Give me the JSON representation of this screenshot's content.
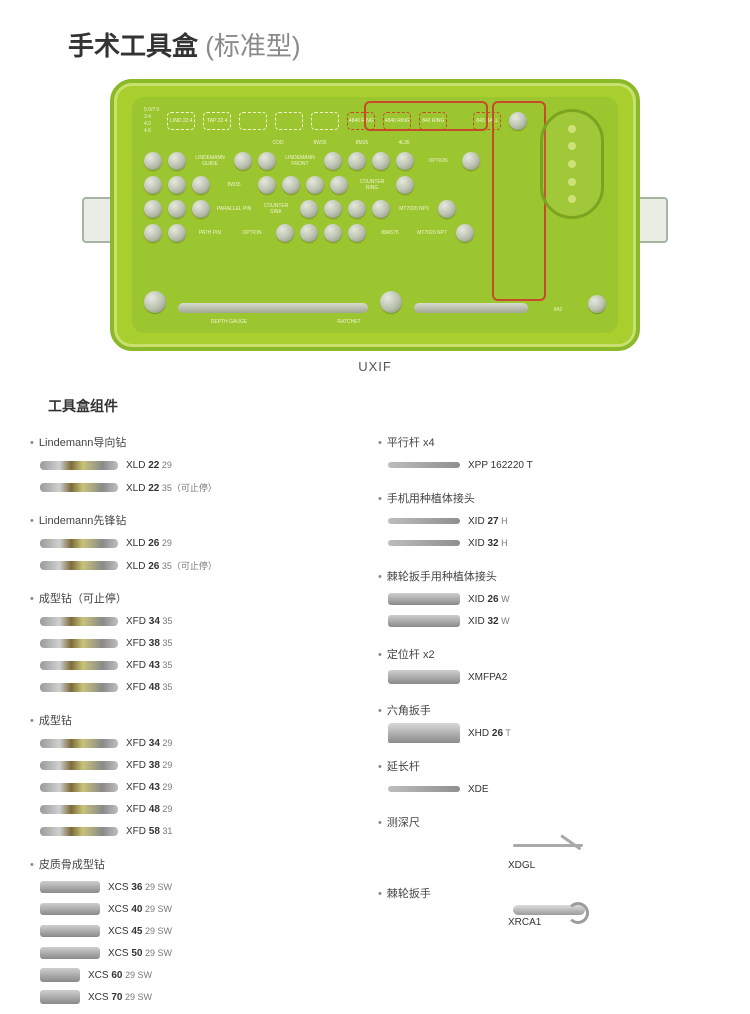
{
  "title_main": "手术工具盒",
  "title_sub": "(标准型)",
  "tray_caption": "UXIF",
  "section_heading": "工具盒组件",
  "colors": {
    "tray_outer": "#a8cf2e",
    "tray_border": "#8cb92a",
    "tray_inset": "#c8e16e",
    "panel": "#9cc62f",
    "accent_red": "#c74a2b",
    "text_dark": "#333333",
    "text_muted": "#7a7a7a",
    "metal_light": "#d0d0d0",
    "metal_dark": "#8a8a8a"
  },
  "tray_labels": {
    "top_boxes": [
      "5.0/7.0",
      "3.4",
      "4.0",
      "4.6"
    ],
    "white_boxes": [
      "LIND 22.4",
      "TAP 22.4",
      "",
      "",
      ""
    ],
    "red_top": [
      "4840 RING",
      "4840 RING",
      "842 RING"
    ],
    "right_top": [
      "843 BALL",
      "RPV"
    ],
    "r1_labs": [
      "COD",
      "8W35",
      "8M35",
      "4L35"
    ],
    "r2_labs": [
      "LINDEMANN GUIDE",
      "LINDEMANN FRONT",
      "",
      ""
    ],
    "r3_labs": [
      "8W35",
      "8W35",
      "8W35"
    ],
    "r4_labs": [
      "PARALLEL PIN"
    ],
    "r5_labs": [
      "COUNTER SINK",
      "COUNTER SINK",
      "COUNTER SINK",
      "COUNTER SINK"
    ],
    "r6_labs": [
      "PATH PIN",
      "OPTION"
    ],
    "r7_labs": [
      "88A575",
      "88A575",
      "88A575",
      "88A575"
    ],
    "right_labs": [
      "OPTION",
      "COUNTER RING",
      "MT7020 NP3",
      "MT7020 NP7"
    ],
    "bottom_labs": [
      "DEPTH GAUGE",
      "RATCHET"
    ],
    "bottom_right_labs": [
      "842",
      "DRILL SSR"
    ]
  },
  "left_groups": [
    {
      "label": "Lindemann导向钻",
      "items": [
        {
          "code_pre": "XLD ",
          "code_b": "22",
          "code_post": " 29",
          "img": "tool"
        },
        {
          "code_pre": "XLD ",
          "code_b": "22",
          "code_post": " 35（可止停）",
          "img": "tool"
        }
      ]
    },
    {
      "label": "Lindemann先锋钻",
      "items": [
        {
          "code_pre": "XLD ",
          "code_b": "26",
          "code_post": " 29",
          "img": "tool"
        },
        {
          "code_pre": "XLD ",
          "code_b": "26",
          "code_post": " 35（可止停）",
          "img": "tool"
        }
      ]
    },
    {
      "label": "成型钻（可止停）",
      "items": [
        {
          "code_pre": "XFD ",
          "code_b": "34",
          "code_post": " 35",
          "img": "tool"
        },
        {
          "code_pre": "XFD ",
          "code_b": "38",
          "code_post": " 35",
          "img": "tool"
        },
        {
          "code_pre": "XFD ",
          "code_b": "43",
          "code_post": " 35",
          "img": "tool"
        },
        {
          "code_pre": "XFD ",
          "code_b": "48",
          "code_post": " 35",
          "img": "tool"
        }
      ]
    },
    {
      "label": "成型钻",
      "items": [
        {
          "code_pre": "XFD ",
          "code_b": "34",
          "code_post": " 29",
          "img": "tool"
        },
        {
          "code_pre": "XFD ",
          "code_b": "38",
          "code_post": " 29",
          "img": "tool"
        },
        {
          "code_pre": "XFD ",
          "code_b": "43",
          "code_post": " 29",
          "img": "tool"
        },
        {
          "code_pre": "XFD ",
          "code_b": "48",
          "code_post": " 29",
          "img": "tool"
        },
        {
          "code_pre": "XFD ",
          "code_b": "58",
          "code_post": " 31",
          "img": "tool"
        }
      ]
    },
    {
      "label": "皮质骨成型钻",
      "items": [
        {
          "code_pre": "XCS ",
          "code_b": "36",
          "code_post": " 29 SW",
          "img": "stub2"
        },
        {
          "code_pre": "XCS ",
          "code_b": "40",
          "code_post": " 29 SW",
          "img": "stub2"
        },
        {
          "code_pre": "XCS ",
          "code_b": "45",
          "code_post": " 29 SW",
          "img": "stub2"
        },
        {
          "code_pre": "XCS ",
          "code_b": "50",
          "code_post": " 29 SW",
          "img": "stub2"
        },
        {
          "code_pre": "XCS ",
          "code_b": "60",
          "code_post": " 29 SW",
          "img": "stub"
        },
        {
          "code_pre": "XCS ",
          "code_b": "70",
          "code_post": " 29 SW",
          "img": "stub"
        }
      ]
    }
  ],
  "right_groups": [
    {
      "label": "平行杆 x4",
      "items": [
        {
          "code_pre": "XPP 162220 T",
          "code_b": "",
          "code_post": "",
          "img": "thin"
        }
      ]
    },
    {
      "label": "手机用种植体接头",
      "items": [
        {
          "code_pre": "XID ",
          "code_b": "27",
          "code_post": " H",
          "img": "thin"
        },
        {
          "code_pre": "XID ",
          "code_b": "32",
          "code_post": " H",
          "img": "thin"
        }
      ]
    },
    {
      "label": "棘轮扳手用种植体接头",
      "items": [
        {
          "code_pre": "XID ",
          "code_b": "26",
          "code_post": " W",
          "img": "stub2"
        },
        {
          "code_pre": "XID ",
          "code_b": "32",
          "code_post": " W",
          "img": "stub2"
        }
      ]
    },
    {
      "label": "定位杆 x2",
      "items": [
        {
          "code_pre": "XMFPA2",
          "code_b": "",
          "code_post": "",
          "img": "stub"
        }
      ]
    },
    {
      "label": "六角扳手",
      "items": [
        {
          "code_pre": "XHD ",
          "code_b": "26",
          "code_post": " T",
          "img": "nut"
        }
      ]
    },
    {
      "label": "延长杆",
      "items": [
        {
          "code_pre": "XDE",
          "code_b": "",
          "code_post": "",
          "img": "thin"
        }
      ]
    },
    {
      "label": "测深尺",
      "items": [
        {
          "code_pre": "XDGL",
          "code_b": "",
          "code_post": "",
          "img": "bent"
        }
      ]
    },
    {
      "label": "棘轮扳手",
      "items": [
        {
          "code_pre": "XRCA1",
          "code_b": "",
          "code_post": "",
          "img": "wrench"
        }
      ]
    }
  ]
}
